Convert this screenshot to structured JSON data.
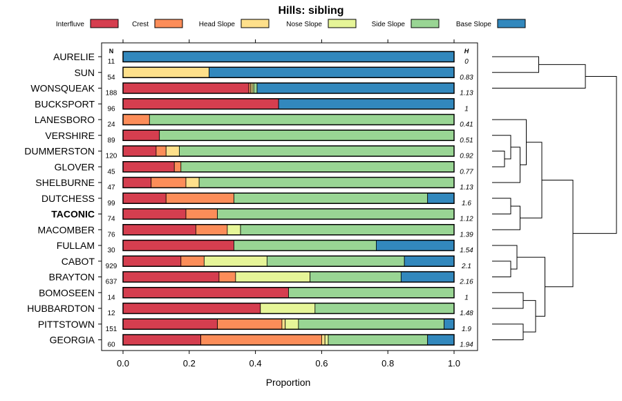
{
  "chart_data": {
    "type": "bar",
    "subtype": "stacked-horizontal-proportion",
    "title": "Hills: sibling",
    "xlabel": "Proportion",
    "ylabel": "",
    "xlim": [
      0,
      1
    ],
    "xticks": [
      "0.0",
      "0.2",
      "0.4",
      "0.6",
      "0.8",
      "1.0"
    ],
    "xtick_values": [
      0,
      0.2,
      0.4,
      0.6,
      0.8,
      1.0
    ],
    "n_header": "N",
    "h_header": "H",
    "legend": [
      {
        "name": "Interfluve",
        "color": "#d53e4f"
      },
      {
        "name": "Crest",
        "color": "#fc8d59"
      },
      {
        "name": "Head Slope",
        "color": "#fee08b"
      },
      {
        "name": "Nose Slope",
        "color": "#e6f598"
      },
      {
        "name": "Side Slope",
        "color": "#99d594"
      },
      {
        "name": "Base Slope",
        "color": "#3288bd"
      }
    ],
    "highlight": "TACONIC",
    "categories": [
      "AURELIE",
      "SUN",
      "WONSQUEAK",
      "BUCKSPORT",
      "LANESBORO",
      "VERSHIRE",
      "DUMMERSTON",
      "GLOVER",
      "SHELBURNE",
      "DUTCHESS",
      "TACONIC",
      "MACOMBER",
      "FULLAM",
      "CABOT",
      "BRAYTON",
      "BOMOSEEN",
      "HUBBARDTON",
      "PITTSTOWN",
      "GEORGIA"
    ],
    "n": [
      "11",
      "54",
      "188",
      "96",
      "24",
      "89",
      "120",
      "45",
      "47",
      "99",
      "74",
      "76",
      "30",
      "929",
      "637",
      "14",
      "12",
      "151",
      "60"
    ],
    "h": [
      "0",
      "0.83",
      "1.13",
      "1",
      "0.41",
      "0.51",
      "0.92",
      "0.77",
      "1.13",
      "1.6",
      "1.12",
      "1.39",
      "1.54",
      "2.1",
      "2.16",
      "1",
      "1.48",
      "1.9",
      "1.94"
    ],
    "series": [
      {
        "name": "Interfluve",
        "values": [
          0,
          0,
          0.38,
          0.47,
          0,
          0.11,
          0.1,
          0.155,
          0.085,
          0.13,
          0.19,
          0.22,
          0.335,
          0.175,
          0.29,
          0.5,
          0.415,
          0.285,
          0.235
        ]
      },
      {
        "name": "Crest",
        "values": [
          0,
          0,
          0.005,
          0,
          0.08,
          0,
          0.03,
          0.02,
          0.105,
          0.205,
          0.095,
          0.095,
          0,
          0.07,
          0.05,
          0,
          0,
          0.195,
          0.365
        ]
      },
      {
        "name": "Head Slope",
        "values": [
          0,
          0.26,
          0.005,
          0,
          0,
          0,
          0.04,
          0,
          0.04,
          0,
          0,
          0,
          0,
          0,
          0,
          0,
          0,
          0.01,
          0.01
        ]
      },
      {
        "name": "Nose Slope",
        "values": [
          0,
          0,
          0.005,
          0,
          0,
          0,
          0,
          0,
          0,
          0,
          0,
          0.04,
          0,
          0.19,
          0.225,
          0,
          0.165,
          0.04,
          0.01
        ]
      },
      {
        "name": "Side Slope",
        "values": [
          0,
          0,
          0.01,
          0,
          0.92,
          0.89,
          0.83,
          0.825,
          0.77,
          0.585,
          0.715,
          0.645,
          0.43,
          0.415,
          0.275,
          0.5,
          0.42,
          0.44,
          0.3
        ]
      },
      {
        "name": "Base Slope",
        "values": [
          1,
          0.74,
          0.595,
          0.53,
          0,
          0,
          0,
          0,
          0,
          0.08,
          0,
          0,
          0.235,
          0.15,
          0.16,
          0,
          0,
          0.03,
          0.08
        ]
      }
    ],
    "dendrogram": {
      "merges": [
        [
          "AURELIE",
          "SUN",
          0.15
        ],
        [
          "AURELIE",
          "WONSQUEAK",
          0.3
        ],
        [
          "DUMMERSTON",
          "GLOVER",
          0.04
        ],
        [
          "VERSHIRE",
          "DUMMERSTON",
          0.06
        ],
        [
          "VERSHIRE",
          "SHELBURNE",
          0.09
        ],
        [
          "LANESBORO",
          "VERSHIRE",
          0.11
        ],
        [
          "DUTCHESS",
          "TACONIC",
          0.06
        ],
        [
          "DUTCHESS",
          "MACOMBER",
          0.09
        ],
        [
          "LANESBORO",
          "DUTCHESS",
          0.16
        ],
        [
          "CABOT",
          "BRAYTON",
          0.06
        ],
        [
          "FULLAM",
          "CABOT",
          0.08
        ],
        [
          "BOMOSEEN",
          "HUBBARDTON",
          0.1
        ],
        [
          "PITTSTOWN",
          "GEORGIA",
          0.1
        ],
        [
          "BOMOSEEN",
          "PITTSTOWN",
          0.14
        ],
        [
          "FULLAM",
          "BOMOSEEN",
          0.17
        ],
        [
          "LANESBORO",
          "FULLAM",
          0.26
        ],
        [
          "AURELIE",
          "LANESBORO",
          0.4
        ]
      ]
    }
  }
}
